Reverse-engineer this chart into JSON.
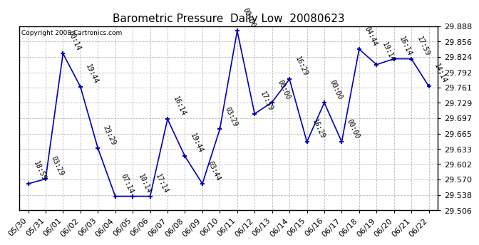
{
  "title": "Barometric Pressure  Daily Low  20080623",
  "copyright": "Copyright 2008 Cartronics.com",
  "x_labels": [
    "05/30",
    "05/31",
    "06/01",
    "06/02",
    "06/03",
    "06/04",
    "06/05",
    "06/06",
    "06/07",
    "06/08",
    "06/09",
    "06/10",
    "06/11",
    "06/12",
    "06/13",
    "06/14",
    "06/15",
    "06/16",
    "06/17",
    "06/18",
    "06/19",
    "06/20",
    "06/21",
    "06/22"
  ],
  "y_values": [
    29.561,
    29.571,
    29.831,
    29.762,
    29.635,
    29.535,
    29.535,
    29.535,
    29.695,
    29.618,
    29.561,
    29.674,
    29.878,
    29.706,
    29.73,
    29.778,
    29.648,
    29.729,
    29.648,
    29.84,
    29.808,
    29.82,
    29.82,
    29.763
  ],
  "time_labels": [
    "18:59",
    "03:29",
    "00:14",
    "19:44",
    "23:29",
    "07:14",
    "10:14",
    "17:14",
    "16:14",
    "19:44",
    "03:44",
    "03:29",
    "00:00",
    "17:59",
    "00:00",
    "16:29",
    "16:29",
    "00:00",
    "00:00",
    "04:44",
    "19:14",
    "16:14",
    "17:59",
    "14:14"
  ],
  "y_ticks": [
    29.506,
    29.538,
    29.57,
    29.602,
    29.633,
    29.665,
    29.697,
    29.729,
    29.761,
    29.792,
    29.824,
    29.856,
    29.888
  ],
  "y_min": 29.506,
  "y_max": 29.888,
  "line_color": "#0000bb",
  "bg_color": "#ffffff",
  "grid_color": "#bbbbbb",
  "title_fontsize": 11,
  "tick_fontsize": 8,
  "annot_fontsize": 7
}
